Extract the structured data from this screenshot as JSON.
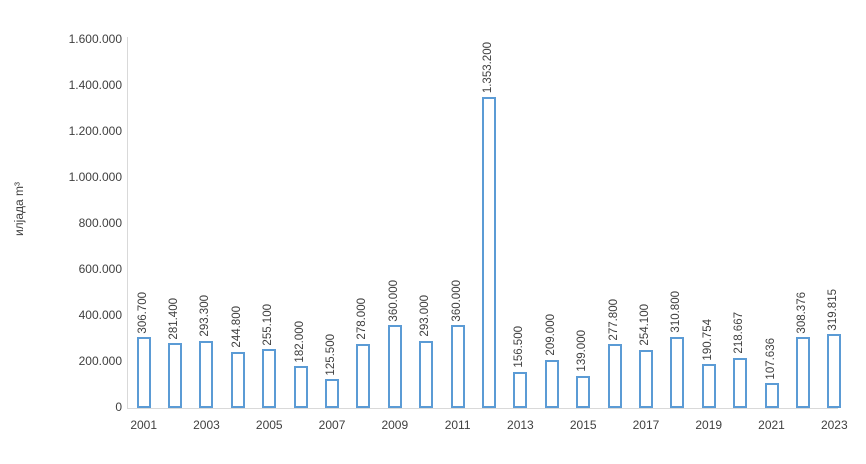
{
  "chart_data": {
    "type": "bar",
    "title": "",
    "xlabel": "",
    "ylabel": "илјада m³",
    "ylim": [
      0,
      1600000
    ],
    "ytick_interval": 200000,
    "ytick_labels": [
      "0",
      "200.000",
      "400.000",
      "600.000",
      "800.000",
      "1.000.000",
      "1.200.000",
      "1.400.000",
      "1.600.000"
    ],
    "categories": [
      2001,
      2002,
      2003,
      2004,
      2005,
      2006,
      2007,
      2008,
      2009,
      2010,
      2011,
      2012,
      2013,
      2014,
      2015,
      2016,
      2017,
      2018,
      2019,
      2020,
      2021,
      2022,
      2023
    ],
    "values": [
      306700,
      281400,
      293300,
      244800,
      255100,
      182000,
      125500,
      278000,
      360000,
      293000,
      360000,
      1353200,
      156500,
      209000,
      139000,
      277800,
      254100,
      310800,
      190754,
      218667,
      107636,
      308376,
      319815
    ],
    "data_labels": [
      "306.700",
      "281.400",
      "293.300",
      "244.800",
      "255.100",
      "182.000",
      "125.500",
      "278.000",
      "360.000",
      "293.000",
      "360.000",
      "1.353.200",
      "156.500",
      "209.000",
      "139.000",
      "277.800",
      "254.100",
      "310.800",
      "190.754",
      "218.667",
      "107.636",
      "308.376",
      "319.815"
    ],
    "xtick_labels": [
      "2001",
      "2003",
      "2005",
      "2007",
      "2009",
      "2011",
      "2013",
      "2015",
      "2017",
      "2019",
      "2021",
      "2023"
    ],
    "grid": false,
    "legend_position": "none",
    "colors": {
      "bar_fill": "#ffffff",
      "bar_border": "#5b9bd5",
      "axis_line": "#d9d9d9",
      "text": "#404040"
    }
  }
}
